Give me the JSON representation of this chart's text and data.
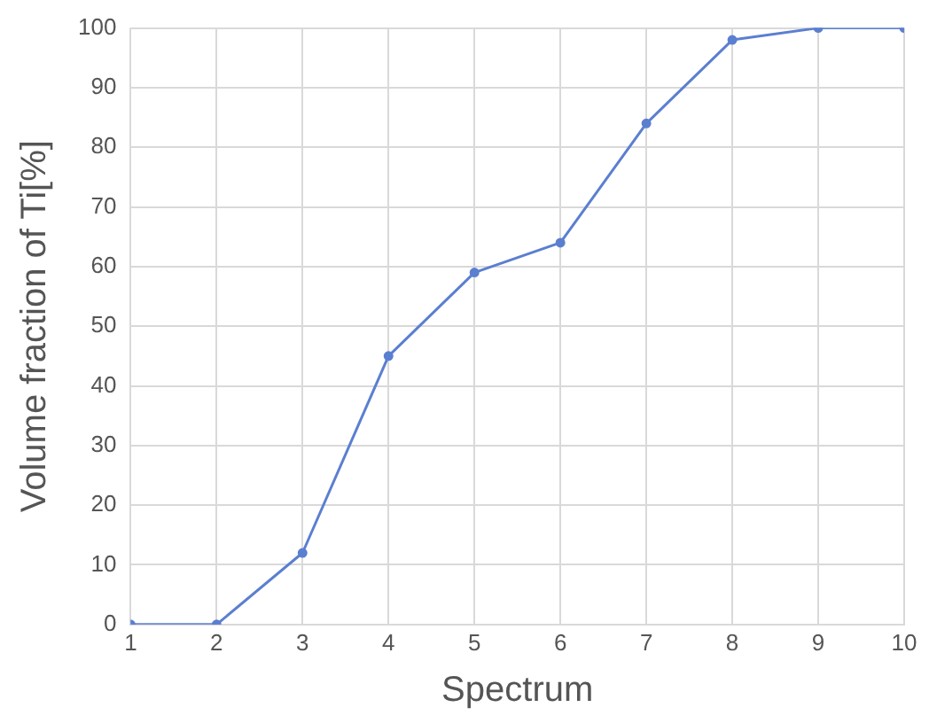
{
  "chart_data": {
    "type": "line",
    "xlabel": "Spectrum",
    "ylabel": "Volume fraction of Ti[%]",
    "x": [
      1,
      2,
      3,
      4,
      5,
      6,
      7,
      8,
      9,
      10
    ],
    "series": [
      {
        "color": "#5b7fd0",
        "values": [
          0,
          0,
          12,
          45,
          59,
          64,
          84,
          98,
          100,
          100
        ]
      }
    ],
    "xlim": [
      1,
      10
    ],
    "xticks": [
      1,
      2,
      3,
      4,
      5,
      6,
      7,
      8,
      9,
      10
    ],
    "ylim": [
      0,
      100
    ],
    "yticks": [
      0,
      10,
      20,
      30,
      40,
      50,
      60,
      70,
      80,
      90,
      100
    ],
    "grid": true,
    "legend": false,
    "marker": "circle",
    "line_style": "solid"
  }
}
